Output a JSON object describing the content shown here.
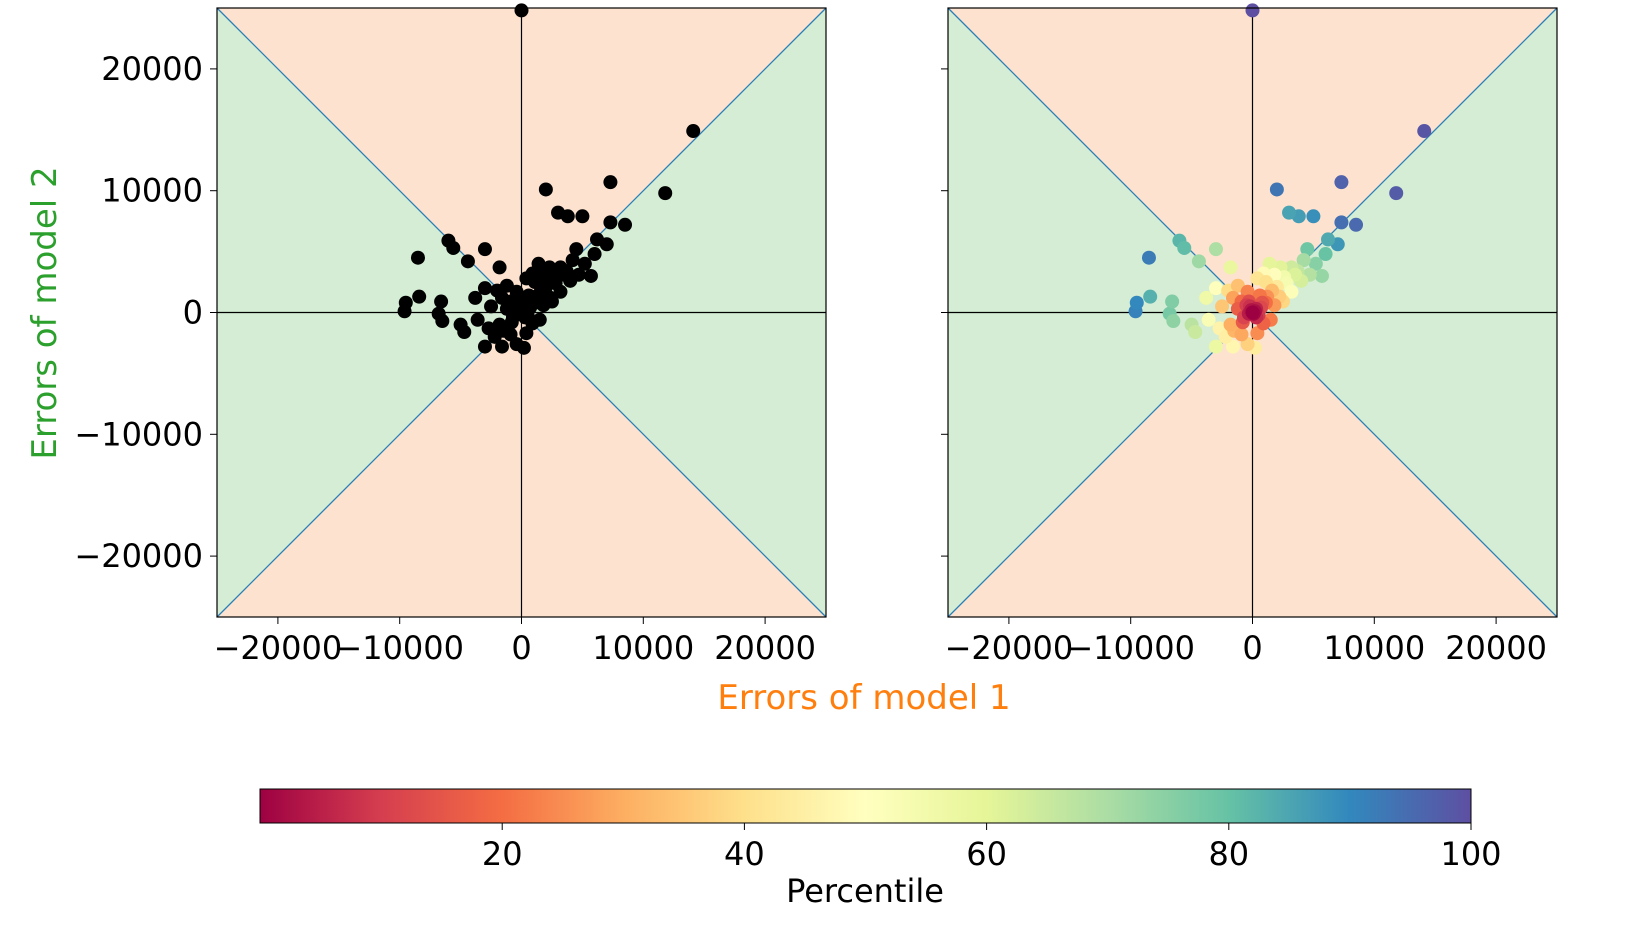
{
  "chart_data": [
    {
      "type": "scatter",
      "panel": "left",
      "xlabel": "Errors of model 1",
      "ylabel": "Errors of model 2",
      "xlim": [
        -25000,
        25000
      ],
      "ylim": [
        -25000,
        25000
      ],
      "xticks": [
        -20000,
        -10000,
        0,
        10000,
        20000
      ],
      "yticks": [
        -20000,
        -10000,
        0,
        10000,
        20000
      ],
      "point_color": "#000000",
      "region_colors": {
        "model1_better": "#fde3cf",
        "model2_better": "#d4edd4"
      },
      "diagonal_color": "#2a7fb8",
      "axis_line_color": "#000000",
      "x_label_color": "#ff7f0e",
      "y_label_color": "#2ca02c"
    },
    {
      "type": "scatter",
      "panel": "right",
      "color_by": "percentile",
      "xlim": [
        -25000,
        25000
      ],
      "ylim": [
        -25000,
        25000
      ],
      "xticks": [
        -20000,
        -10000,
        0,
        10000,
        20000
      ],
      "yticks": [
        -20000,
        -10000,
        0,
        10000,
        20000
      ],
      "yticklabels_shown": false,
      "colormap": "Spectral",
      "colorbar": {
        "label": "Percentile",
        "ticks": [
          20,
          40,
          60,
          80,
          100
        ],
        "range": [
          0,
          100
        ]
      }
    }
  ],
  "points": [
    [
      0,
      24800
    ],
    [
      14100,
      14900
    ],
    [
      7300,
      10700
    ],
    [
      2000,
      10100
    ],
    [
      11800,
      9800
    ],
    [
      3000,
      8200
    ],
    [
      3800,
      7900
    ],
    [
      5000,
      7900
    ],
    [
      7300,
      7400
    ],
    [
      8500,
      7200
    ],
    [
      6200,
      6000
    ],
    [
      4500,
      5200
    ],
    [
      7000,
      5600
    ],
    [
      6000,
      4800
    ],
    [
      5200,
      4000
    ],
    [
      -6000,
      5900
    ],
    [
      -5600,
      5300
    ],
    [
      -3000,
      5200
    ],
    [
      -8500,
      4500
    ],
    [
      -4400,
      4200
    ],
    [
      -1800,
      3700
    ],
    [
      -9500,
      800
    ],
    [
      -8400,
      1300
    ],
    [
      -9600,
      100
    ],
    [
      -6600,
      900
    ],
    [
      -6800,
      -100
    ],
    [
      -6500,
      -700
    ],
    [
      -5000,
      -1000
    ],
    [
      -4700,
      -1600
    ],
    [
      -3000,
      2000
    ],
    [
      -3000,
      -2800
    ],
    [
      -1600,
      -2800
    ],
    [
      -400,
      -2600
    ],
    [
      200,
      -2900
    ],
    [
      -3800,
      1200
    ],
    [
      -2500,
      500
    ],
    [
      -1800,
      -1000
    ],
    [
      -900,
      -1800
    ],
    [
      -2000,
      1800
    ],
    [
      -1200,
      2200
    ],
    [
      -400,
      1700
    ],
    [
      400,
      2800
    ],
    [
      900,
      3200
    ],
    [
      1400,
      4000
    ],
    [
      2300,
      3700
    ],
    [
      3200,
      3700
    ],
    [
      3700,
      3400
    ],
    [
      2800,
      2400
    ],
    [
      3200,
      1700
    ],
    [
      4000,
      2600
    ],
    [
      4700,
      3100
    ],
    [
      5700,
      3000
    ],
    [
      2200,
      1300
    ],
    [
      1800,
      600
    ],
    [
      1500,
      -600
    ],
    [
      400,
      -1700
    ],
    [
      1100,
      800
    ],
    [
      600,
      1400
    ],
    [
      -300,
      900
    ],
    [
      -700,
      -400
    ],
    [
      300,
      -400
    ],
    [
      700,
      400
    ],
    [
      -1200,
      300
    ],
    [
      1600,
      1800
    ],
    [
      2500,
      900
    ],
    [
      -1600,
      1200
    ],
    [
      1100,
      2500
    ],
    [
      -200,
      500
    ],
    [
      200,
      100
    ],
    [
      0,
      0
    ],
    [
      100,
      -100
    ],
    [
      -100,
      200
    ],
    [
      300,
      300
    ],
    [
      -300,
      -100
    ],
    [
      500,
      -200
    ],
    [
      -500,
      600
    ],
    [
      800,
      800
    ],
    [
      -800,
      -800
    ],
    [
      1200,
      1300
    ],
    [
      -1500,
      -1500
    ],
    [
      900,
      -900
    ],
    [
      -900,
      900
    ],
    [
      2000,
      2100
    ],
    [
      2600,
      2900
    ],
    [
      -2200,
      -2000
    ],
    [
      4200,
      4300
    ],
    [
      3500,
      3100
    ],
    [
      1800,
      3100
    ],
    [
      -2700,
      -1300
    ],
    [
      -3600,
      -600
    ]
  ]
}
